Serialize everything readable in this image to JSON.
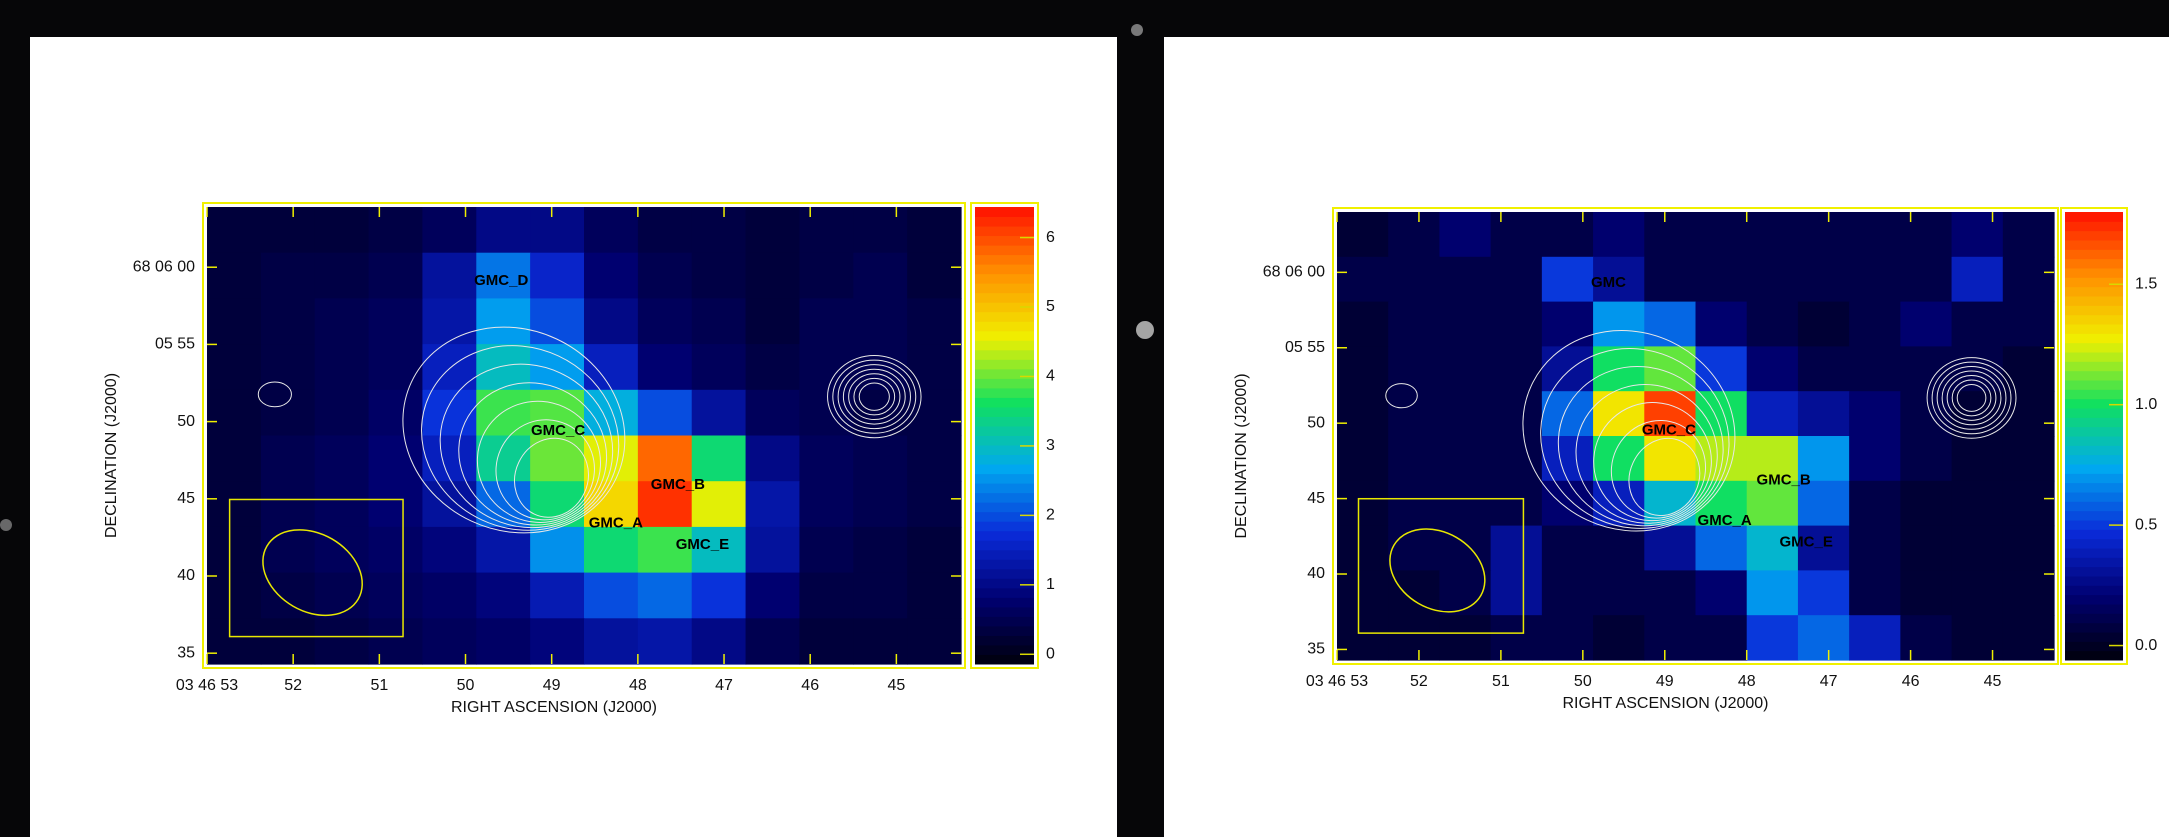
{
  "chart_data": [
    {
      "type": "heatmap",
      "x_label": "RIGHT ASCENSION (J2000)",
      "y_label": "DECLINATION (J2000)",
      "xlim": [
        53,
        44.25
      ],
      "ylim": [
        34.3,
        63.9
      ],
      "xticks": [
        {
          "value": 53,
          "label": "03 46 53"
        },
        52,
        51,
        50,
        49,
        48,
        47,
        46,
        45
      ],
      "yticks": [
        {
          "value": 60,
          "label": "68 06 00"
        },
        {
          "value": 55,
          "label": "05 55"
        },
        50,
        45,
        40,
        35
      ],
      "clim": [
        -0.14,
        6.44
      ],
      "cticks": [
        0,
        1,
        2,
        3,
        4,
        5,
        6
      ],
      "colormap": [
        "#00000c",
        "#000070",
        "#0a2ad8",
        "#00a8f0",
        "#10e060",
        "#f0f000",
        "#ff9000",
        "#ff1000"
      ],
      "values": [
        [
          0.3,
          0.3,
          0.3,
          0.4,
          0.6,
          1.0,
          1.0,
          0.6,
          0.4,
          0.4,
          0.3,
          0.4,
          0.4,
          0.3
        ],
        [
          0.3,
          0.4,
          0.4,
          0.5,
          1.2,
          2.3,
          1.6,
          0.8,
          0.5,
          0.4,
          0.3,
          0.4,
          0.5,
          0.3
        ],
        [
          0.3,
          0.4,
          0.5,
          0.6,
          1.3,
          2.6,
          2.0,
          1.0,
          0.6,
          0.5,
          0.3,
          0.5,
          0.5,
          0.4
        ],
        [
          0.3,
          0.4,
          0.5,
          0.6,
          1.5,
          3.0,
          2.6,
          1.5,
          0.8,
          0.6,
          0.4,
          0.5,
          0.5,
          0.4
        ],
        [
          0.3,
          0.4,
          0.5,
          0.7,
          1.8,
          3.8,
          3.9,
          2.8,
          2.0,
          1.2,
          0.6,
          0.5,
          0.4,
          0.4
        ],
        [
          0.3,
          0.5,
          0.6,
          0.8,
          1.5,
          3.3,
          4.0,
          4.5,
          5.8,
          3.5,
          1.0,
          0.6,
          0.5,
          0.4
        ],
        [
          0.3,
          0.5,
          0.6,
          0.8,
          1.2,
          2.2,
          3.5,
          4.8,
          6.2,
          4.5,
          1.3,
          0.6,
          0.5,
          0.4
        ],
        [
          0.3,
          0.5,
          0.6,
          0.7,
          0.9,
          1.3,
          2.5,
          3.5,
          3.8,
          3.0,
          1.2,
          0.5,
          0.4,
          0.3
        ],
        [
          0.3,
          0.4,
          0.5,
          0.6,
          0.7,
          0.9,
          1.4,
          2.0,
          2.2,
          1.8,
          0.8,
          0.4,
          0.4,
          0.3
        ],
        [
          0.3,
          0.3,
          0.4,
          0.5,
          0.6,
          0.7,
          0.9,
          1.2,
          1.3,
          1.0,
          0.5,
          0.3,
          0.3,
          0.3
        ]
      ],
      "annotations": [
        {
          "text": "GMC_D",
          "x": 49.9,
          "y": 59.1
        },
        {
          "text": "GMC_C",
          "x": 49.24,
          "y": 49.4
        },
        {
          "text": "GMC_B",
          "x": 47.85,
          "y": 45.9
        },
        {
          "text": "GMC_A",
          "x": 48.57,
          "y": 43.4
        },
        {
          "text": "GMC_E",
          "x": 47.56,
          "y": 42.0
        }
      ]
    },
    {
      "type": "heatmap",
      "x_label": "RIGHT ASCENSION (J2000)",
      "y_label": "DECLINATION (J2000)",
      "xlim": [
        53,
        44.25
      ],
      "ylim": [
        34.3,
        64.0
      ],
      "xticks": [
        {
          "value": 53,
          "label": "03 46 53"
        },
        52,
        51,
        50,
        49,
        48,
        47,
        46,
        45
      ],
      "yticks": [
        {
          "value": 60,
          "label": "68 06 00"
        },
        {
          "value": 55,
          "label": "05 55"
        },
        50,
        45,
        40,
        35
      ],
      "clim": [
        -0.06,
        1.8
      ],
      "cticks": [
        {
          "value": 0,
          "label": "0.0"
        },
        0.5,
        {
          "value": 1,
          "label": "1.0"
        },
        1.5
      ],
      "colormap": [
        "#00000c",
        "#000070",
        "#0a2ad8",
        "#00a8f0",
        "#10e060",
        "#f0f000",
        "#ff9000",
        "#ff1000"
      ],
      "values": [
        [
          0.05,
          0.1,
          0.2,
          0.1,
          0.1,
          0.2,
          0.1,
          0.1,
          0.1,
          0.1,
          0.1,
          0.1,
          0.2,
          0.1
        ],
        [
          0.1,
          0.1,
          0.1,
          0.1,
          0.5,
          0.3,
          0.1,
          0.1,
          0.1,
          0.1,
          0.1,
          0.1,
          0.4,
          0.1
        ],
        [
          0.05,
          0.1,
          0.1,
          0.1,
          0.2,
          0.7,
          0.6,
          0.2,
          0.1,
          0.05,
          0.1,
          0.2,
          0.1,
          0.1
        ],
        [
          0.05,
          0.1,
          0.1,
          0.1,
          0.3,
          1.0,
          1.1,
          0.5,
          0.2,
          0.1,
          0.1,
          0.1,
          0.1,
          0.05
        ],
        [
          0.05,
          0.1,
          0.1,
          0.1,
          0.6,
          1.3,
          1.7,
          1.0,
          0.4,
          0.3,
          0.2,
          0.1,
          0.05,
          0.05
        ],
        [
          0.05,
          0.1,
          0.1,
          0.1,
          0.4,
          1.0,
          1.3,
          1.2,
          1.2,
          0.7,
          0.2,
          0.1,
          0.05,
          0.05
        ],
        [
          0.05,
          0.1,
          0.1,
          0.1,
          0.2,
          0.4,
          0.8,
          1.0,
          1.1,
          0.6,
          0.1,
          0.05,
          0.05,
          0.05
        ],
        [
          0.05,
          0.1,
          0.1,
          0.3,
          0.1,
          0.1,
          0.3,
          0.6,
          0.8,
          0.3,
          0.1,
          0.05,
          0.05,
          0.05
        ],
        [
          0.05,
          0.05,
          0.1,
          0.3,
          0.1,
          0.1,
          0.1,
          0.2,
          0.7,
          0.5,
          0.1,
          0.05,
          0.05,
          0.05
        ],
        [
          0.05,
          0.05,
          0.05,
          0.1,
          0.1,
          0.05,
          0.1,
          0.1,
          0.5,
          0.6,
          0.4,
          0.1,
          0.05,
          0.05
        ]
      ],
      "annotations": [
        {
          "text": "GMC",
          "x": 49.9,
          "y": 59.3
        },
        {
          "text": "GMC_C",
          "x": 49.28,
          "y": 49.5
        },
        {
          "text": "GMC_B",
          "x": 47.88,
          "y": 46.2
        },
        {
          "text": "GMC_A",
          "x": 48.6,
          "y": 43.5
        },
        {
          "text": "GMC_E",
          "x": 47.6,
          "y": 42.1
        }
      ]
    }
  ]
}
